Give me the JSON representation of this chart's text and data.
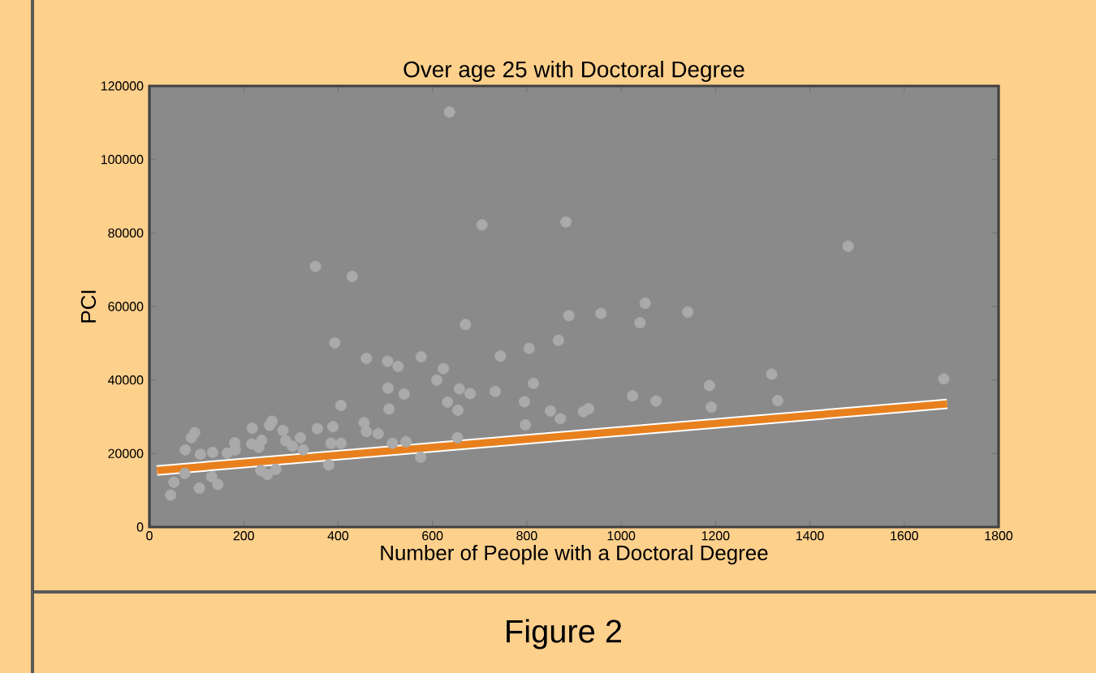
{
  "chart_data": {
    "type": "scatter",
    "title": "Over age 25 with Doctoral Degree",
    "xlabel": "Number of People with a Doctoral Degree",
    "ylabel": "PCI",
    "xlim": [
      0,
      1800
    ],
    "ylim": [
      0,
      120000
    ],
    "xticks": [
      0,
      200,
      400,
      600,
      800,
      1000,
      1200,
      1400,
      1600,
      1800
    ],
    "yticks": [
      0,
      20000,
      40000,
      60000,
      80000,
      100000,
      120000
    ],
    "grid": false,
    "annotations": [
      "Figure 2"
    ],
    "series": [
      {
        "color": "#aaaaaa",
        "marker": "circle",
        "x": [
          636,
          352,
          430,
          705,
          883,
          393,
          670,
          889,
          957,
          867,
          805,
          744,
          576,
          460,
          505,
          527,
          623,
          609,
          657,
          680,
          733,
          814,
          506,
          540,
          406,
          508,
          632,
          654,
          795,
          850,
          871,
          920,
          931,
          797,
          1024,
          356,
          389,
          455,
          460,
          485,
          218,
          260,
          255,
          283,
          320,
          96,
          89,
          76,
          181,
          217,
          238,
          289,
          385,
          406,
          515,
          544,
          575,
          653,
          380,
          250,
          45,
          106,
          145,
          134,
          108,
          165,
          182,
          52,
          75,
          132,
          268,
          236,
          326,
          232,
          303,
          1481,
          1051,
          1040,
          1141,
          1319,
          1684,
          1187,
          1074,
          1191,
          1332
        ],
        "values": [
          112900,
          70900,
          68200,
          82200,
          83000,
          50100,
          55100,
          57500,
          58100,
          50800,
          48600,
          46500,
          46300,
          45900,
          45100,
          43700,
          43100,
          40000,
          37600,
          36300,
          36900,
          39100,
          37800,
          36200,
          33100,
          32100,
          34000,
          31800,
          34100,
          31600,
          29500,
          31400,
          32200,
          27800,
          35700,
          26800,
          27300,
          28400,
          26000,
          25400,
          26900,
          28800,
          27700,
          26300,
          24300,
          25700,
          24300,
          21000,
          22900,
          22600,
          23600,
          23500,
          22800,
          22800,
          22800,
          23200,
          19000,
          24300,
          16900,
          14300,
          8700,
          10600,
          11600,
          20300,
          19800,
          20100,
          21000,
          12200,
          14600,
          13700,
          15700,
          15400,
          21000,
          21700,
          22000,
          76400,
          60900,
          55600,
          58500,
          41600,
          40300,
          38500,
          34300,
          32600,
          34400
        ]
      },
      {
        "type": "line",
        "color": "#e8801e",
        "marker": "none",
        "line_style": "solid",
        "x": [
          16,
          1691
        ],
        "values": [
          15400,
          33500
        ]
      }
    ]
  }
}
